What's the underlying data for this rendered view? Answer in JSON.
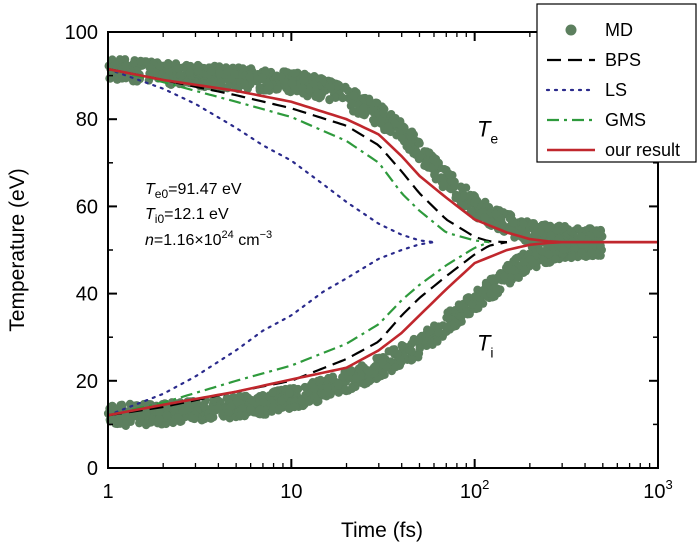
{
  "chart_data": {
    "type": "line",
    "xlabel": "Time (fs)",
    "ylabel": "Temperature (eV)",
    "xscale": "log",
    "xlim": [
      1,
      1000
    ],
    "ylim": [
      0,
      100
    ],
    "x_ticks": [
      {
        "value": 1,
        "label": "1"
      },
      {
        "value": 10,
        "label": "10"
      },
      {
        "value": 100,
        "label": "10",
        "sup": "2"
      },
      {
        "value": 1000,
        "label": "10",
        "sup": "3"
      }
    ],
    "y_ticks": [
      0,
      20,
      40,
      60,
      80,
      100
    ],
    "legend_position": "top-right",
    "annotations": {
      "Te0": {
        "var": "T",
        "sub": "e0",
        "text": "=91.47 eV"
      },
      "Ti0": {
        "var": "T",
        "sub": "i0",
        "text": "=12.1 eV"
      },
      "n": {
        "var": "n",
        "text": "=1.16×10",
        "sup": "24",
        "unit": " cm",
        "unit_sup": "−3"
      }
    },
    "curve_labels": {
      "Te": {
        "var": "T",
        "sub": "e",
        "x": 150,
        "y": 76
      },
      "Ti": {
        "var": "T",
        "sub": "i",
        "x": 150,
        "y": 27
      }
    },
    "series": [
      {
        "name": "MD",
        "style": "scatter",
        "color": "#5c7f5e",
        "upper": {
          "x": [
            1,
            1.5,
            2,
            3,
            5,
            7,
            10,
            15,
            20,
            30,
            40,
            50,
            70,
            100,
            150,
            200,
            300,
            500
          ],
          "y": [
            91.5,
            91,
            90.5,
            90,
            89.5,
            89,
            88.5,
            87,
            85,
            81,
            77,
            73,
            66,
            60,
            56,
            54,
            53,
            52.5
          ]
        },
        "lower": {
          "x": [
            1,
            1.5,
            2,
            3,
            5,
            7,
            10,
            15,
            20,
            30,
            40,
            50,
            70,
            100,
            150,
            200,
            300,
            500
          ],
          "y": [
            12,
            12.3,
            12.5,
            13,
            14,
            14.5,
            16,
            18,
            20,
            23,
            26,
            28,
            33,
            38,
            44,
            48,
            50.5,
            51
          ]
        },
        "band_width": 2.5
      },
      {
        "name": "BPS",
        "style": "dashed",
        "color": "#000000",
        "upper": {
          "x": [
            1,
            2,
            5,
            10,
            20,
            30,
            40,
            50,
            70,
            100,
            120,
            150
          ],
          "y": [
            91.5,
            89,
            85.5,
            82.5,
            78.5,
            74,
            68,
            63,
            57,
            53,
            52,
            51.8
          ]
        },
        "lower": {
          "x": [
            1,
            2,
            5,
            10,
            20,
            30,
            40,
            50,
            70,
            100,
            120,
            150
          ],
          "y": [
            12.1,
            14,
            17.5,
            20,
            25,
            29,
            35,
            39,
            44,
            49,
            51,
            51.8
          ]
        }
      },
      {
        "name": "LS",
        "style": "dotted",
        "color": "#2a2a8c",
        "upper": {
          "x": [
            1,
            2,
            3,
            5,
            7,
            10,
            15,
            20,
            30,
            40,
            50,
            60
          ],
          "y": [
            91.5,
            87,
            83.5,
            78,
            74,
            70.5,
            65,
            61,
            56,
            53.5,
            52.2,
            51.8
          ]
        },
        "lower": {
          "x": [
            1,
            2,
            3,
            5,
            7,
            10,
            15,
            20,
            30,
            40,
            50,
            60
          ],
          "y": [
            12.1,
            17,
            21,
            27,
            31.5,
            35,
            40.5,
            43.5,
            48,
            50,
            51.3,
            51.8
          ]
        }
      },
      {
        "name": "GMS",
        "style": "dashdot",
        "color": "#2e9a3c",
        "upper": {
          "x": [
            1,
            2,
            5,
            10,
            20,
            30,
            40,
            50,
            70,
            100,
            120
          ],
          "y": [
            91.5,
            88.5,
            84,
            80.5,
            75,
            70,
            63,
            59,
            54,
            52.2,
            51.8
          ]
        },
        "lower": {
          "x": [
            1,
            2,
            5,
            10,
            20,
            30,
            40,
            50,
            70,
            100,
            120
          ],
          "y": [
            12.1,
            15,
            20,
            23.5,
            28.5,
            33,
            38.5,
            42,
            46.5,
            50.5,
            51.8
          ]
        }
      },
      {
        "name": "our result",
        "style": "solid",
        "color": "#c0272d",
        "upper": {
          "x": [
            1,
            2,
            5,
            10,
            20,
            30,
            40,
            50,
            70,
            100,
            150,
            200,
            250,
            300,
            1000
          ],
          "y": [
            91.5,
            89,
            86.5,
            84,
            80,
            76.5,
            71.5,
            67,
            62,
            57,
            54,
            52.5,
            52,
            51.8,
            51.8
          ]
        },
        "lower": {
          "x": [
            1,
            2,
            5,
            10,
            20,
            30,
            40,
            50,
            70,
            100,
            150,
            200,
            250,
            300,
            1000
          ],
          "y": [
            12.1,
            14.5,
            17.5,
            20.3,
            23,
            27,
            31,
            35,
            41,
            47,
            50,
            51.2,
            51.6,
            51.8,
            51.8
          ]
        }
      }
    ]
  }
}
